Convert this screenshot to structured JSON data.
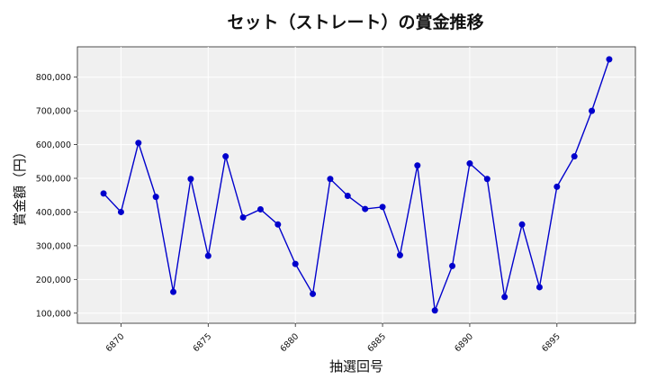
{
  "chart_data": {
    "type": "line",
    "title": "セット（ストレート）の賞金推移",
    "xlabel": "抽選回号",
    "ylabel": "賞金額（円）",
    "x": [
      6869,
      6870,
      6871,
      6872,
      6873,
      6874,
      6875,
      6876,
      6877,
      6878,
      6879,
      6880,
      6881,
      6882,
      6883,
      6884,
      6885,
      6886,
      6887,
      6888,
      6889,
      6890,
      6891,
      6892,
      6893,
      6894,
      6895,
      6896,
      6897,
      6898
    ],
    "series": [
      {
        "values": [
          455000,
          400000,
          605000,
          445000,
          163000,
          498000,
          270000,
          565000,
          384000,
          408000,
          363000,
          246000,
          157000,
          498000,
          448000,
          409000,
          415000,
          272000,
          538000,
          108000,
          240000,
          544000,
          498000,
          148000,
          363000,
          177000,
          475000,
          565000,
          700000,
          853000
        ],
        "color": "#0000cc"
      }
    ],
    "xticks": [
      6870,
      6875,
      6880,
      6885,
      6890,
      6895
    ],
    "xtick_labels": [
      "6870",
      "6875",
      "6880",
      "6885",
      "6890",
      "6895"
    ],
    "yticks": [
      100000,
      200000,
      300000,
      400000,
      500000,
      600000,
      700000,
      800000
    ],
    "ytick_labels": [
      "100,000",
      "200,000",
      "300,000",
      "400,000",
      "500,000",
      "600,000",
      "700,000",
      "800,000"
    ],
    "xlim": [
      6867.5,
      6899.5
    ],
    "ylim": [
      70000,
      890000
    ],
    "grid": true,
    "background": "#f0f0f0"
  }
}
